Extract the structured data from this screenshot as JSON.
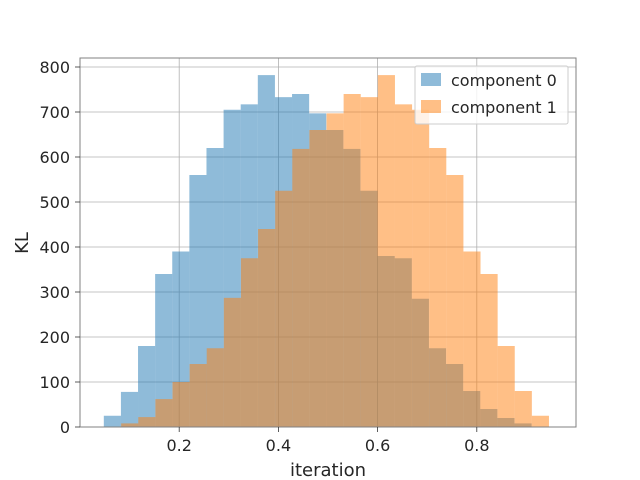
{
  "chart_data": {
    "type": "bar",
    "subtype": "overlapping-histogram",
    "xlabel": "iteration",
    "ylabel": "KL",
    "xlim": [
      0.0,
      1.0
    ],
    "ylim": [
      0,
      820
    ],
    "xticks": [
      0.2,
      0.4,
      0.6,
      0.8
    ],
    "yticks": [
      0,
      100,
      200,
      300,
      400,
      500,
      600,
      700,
      800
    ],
    "grid": true,
    "legend_position": "top-right",
    "bin_width": 0.0345,
    "series": [
      {
        "name": "component 0",
        "color": "#1f77b4",
        "opacity": 0.5,
        "bin_start": 0.048,
        "values": [
          25,
          78,
          180,
          340,
          390,
          560,
          620,
          705,
          717,
          782,
          733,
          740,
          697,
          660,
          618,
          525,
          380,
          375,
          285,
          175,
          140,
          80,
          40,
          20,
          8
        ]
      },
      {
        "name": "component 1",
        "color": "#ff7f0e",
        "opacity": 0.5,
        "bin_start": 0.083,
        "values": [
          8,
          22,
          62,
          100,
          140,
          175,
          287,
          375,
          440,
          525,
          618,
          660,
          697,
          740,
          733,
          782,
          717,
          705,
          620,
          560,
          390,
          340,
          180,
          80,
          25
        ]
      }
    ]
  }
}
